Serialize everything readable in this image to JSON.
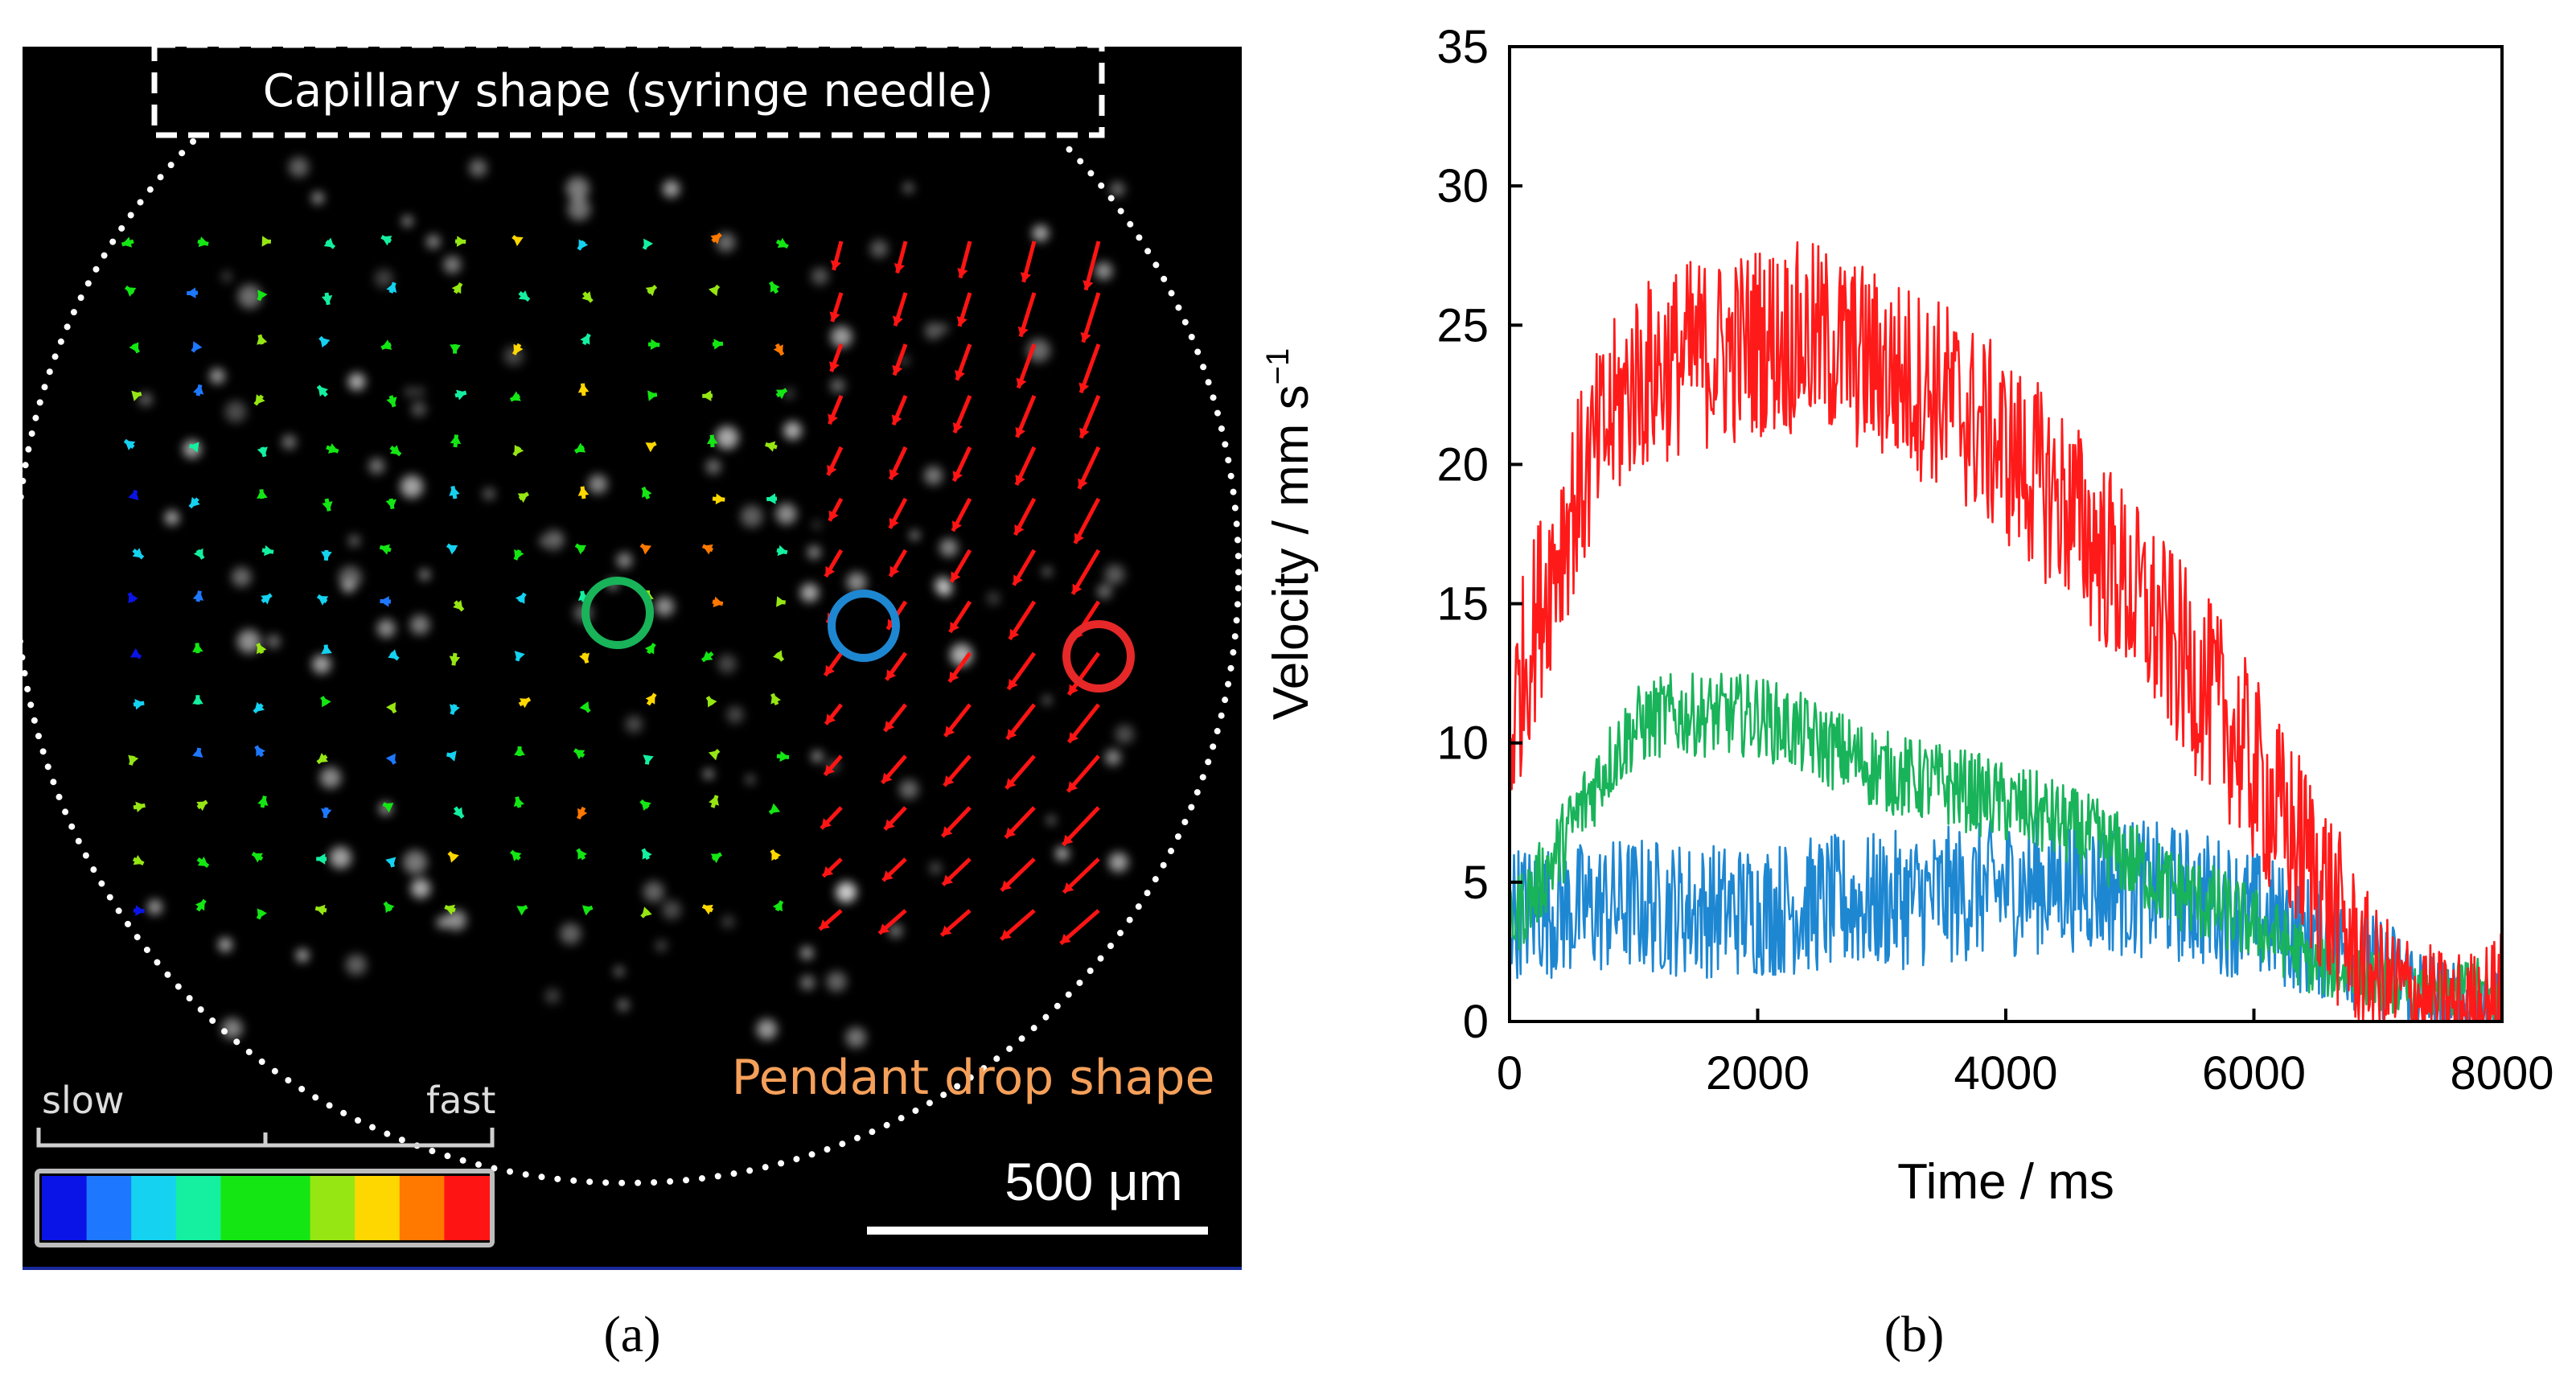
{
  "panel_a": {
    "caption": "(a)",
    "capillary_label": "Capillary shape (syringe needle)",
    "drop_label": "Pendant drop shape",
    "colorbar_slow": "slow",
    "colorbar_fast": "fast",
    "colorbar_colors": [
      "#0a14e6",
      "#1e78ff",
      "#14d2f0",
      "#14f0a0",
      "#14e614",
      "#14e614",
      "#96e614",
      "#ffd700",
      "#ff7800",
      "#ff1414"
    ],
    "scalebar_label": "500 μm",
    "marker_colors": {
      "green": "#19b35a",
      "blue": "#1e87d2",
      "red": "#e62828"
    },
    "background": "#000000"
  },
  "panel_b": {
    "caption": "(b)"
  },
  "chart_data": {
    "type": "line",
    "title": "",
    "xlabel": "Time / ms",
    "ylabel": "Velocity / mm s",
    "ylabel_superscript": "−1",
    "xlim": [
      0,
      8000
    ],
    "ylim": [
      0,
      35
    ],
    "xticks": [
      "0",
      "2000",
      "4000",
      "6000",
      "8000"
    ],
    "yticks": [
      "0",
      "5",
      "10",
      "15",
      "20",
      "25",
      "30",
      "35"
    ],
    "series": [
      {
        "name": "red",
        "color": "#ff1a1a",
        "x": [
          0,
          100,
          250,
          500,
          750,
          1000,
          1250,
          1500,
          1750,
          2000,
          2250,
          2500,
          2750,
          3000,
          3250,
          3500,
          3750,
          4000,
          4250,
          4500,
          4750,
          5000,
          5250,
          5500,
          5750,
          6000,
          6250,
          6500,
          6750,
          7000,
          7250,
          7500,
          7750,
          8000
        ],
        "y": [
          10,
          12.5,
          15,
          18.5,
          21,
          23,
          23.5,
          24,
          24,
          24.5,
          24.5,
          24.5,
          24,
          23.5,
          23,
          22.5,
          21.5,
          20.5,
          19.5,
          18.5,
          17,
          15.5,
          14,
          12.5,
          11,
          9,
          7,
          5.5,
          3,
          1.5,
          1,
          0.5,
          0.5,
          1
        ],
        "noise": 3.5
      },
      {
        "name": "green",
        "color": "#19b35a",
        "x": [
          0,
          250,
          500,
          750,
          1000,
          1250,
          1500,
          1750,
          2000,
          2250,
          2500,
          2750,
          3000,
          3250,
          3500,
          3750,
          4000,
          4250,
          4500,
          4750,
          5000,
          5250,
          5500,
          5750,
          6000,
          6250,
          6500,
          6750,
          7000,
          7250,
          7500,
          7750,
          8000
        ],
        "y": [
          3.5,
          5,
          7,
          9,
          10.5,
          11,
          11,
          11,
          11,
          10.5,
          10,
          9.5,
          9,
          8.7,
          8.5,
          8.2,
          7.8,
          7.5,
          7,
          6.5,
          5.8,
          5,
          4.5,
          4,
          3.5,
          2.8,
          2,
          1.8,
          1.5,
          1,
          0.8,
          1.5,
          0.5
        ],
        "noise": 1.5
      },
      {
        "name": "blue",
        "color": "#1e87d2",
        "x": [
          0,
          500,
          1000,
          1500,
          2000,
          2500,
          3000,
          3500,
          4000,
          4500,
          5000,
          5500,
          6000,
          6500,
          7000,
          7250,
          7500,
          7750,
          8000
        ],
        "y": [
          4,
          4,
          4.2,
          4,
          4,
          4.2,
          4.3,
          4.5,
          4.8,
          5,
          4.8,
          4.5,
          3.8,
          3,
          2,
          1.5,
          0.8,
          0.4,
          0.3
        ],
        "noise": 2.5
      }
    ]
  }
}
